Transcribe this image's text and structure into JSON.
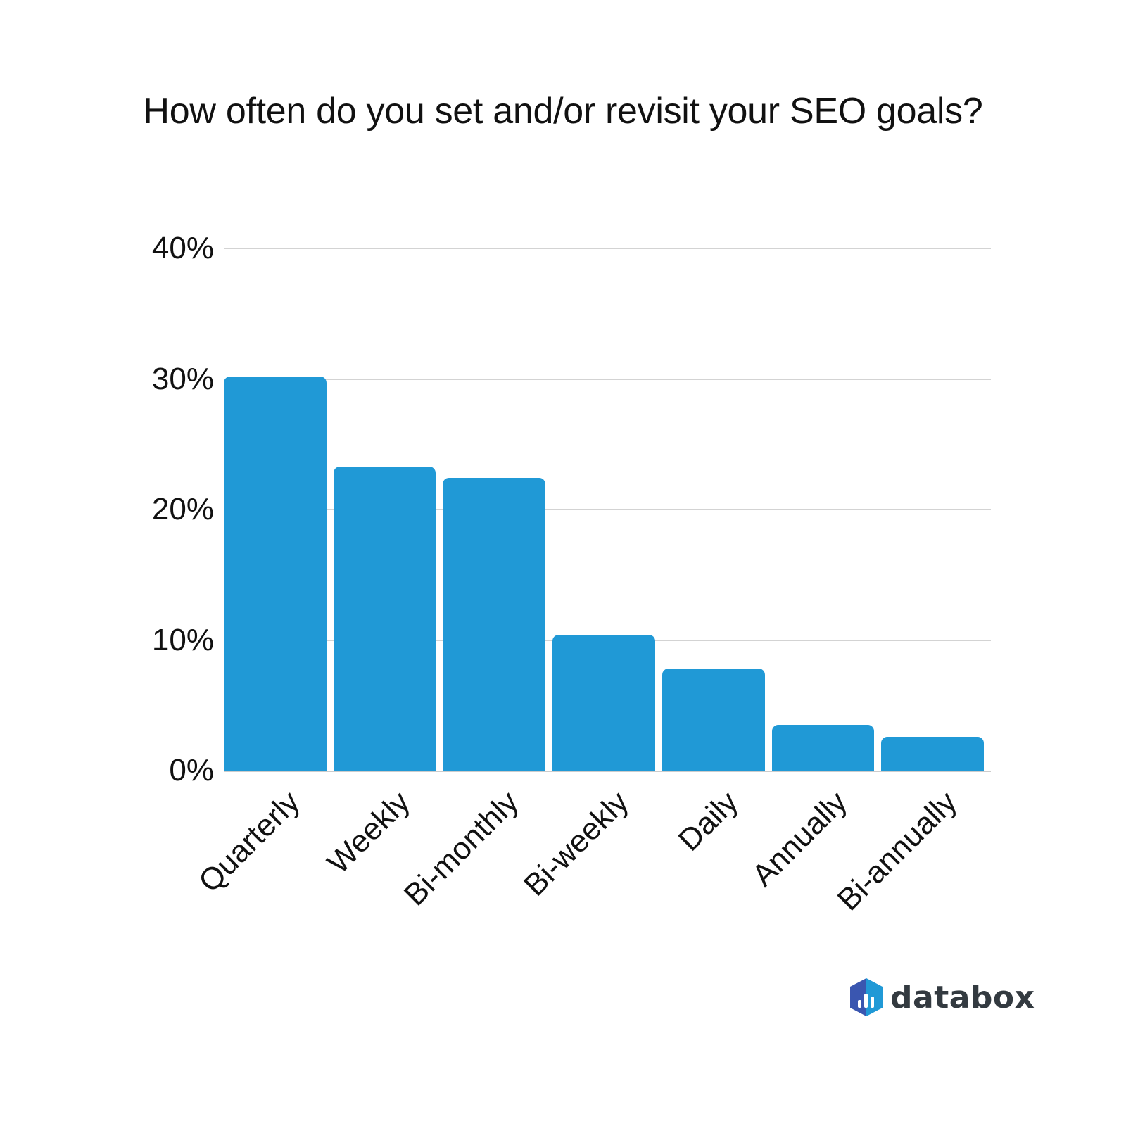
{
  "title": "How often do you set and/or revisit your SEO goals?",
  "brand": {
    "name": "databox",
    "logo_icon": "databox-hexagon-bar-icon",
    "colors": [
      "#3a56b0",
      "#2099d6"
    ]
  },
  "colors": {
    "bar": "#2099d6",
    "grid": "#d3d3d3",
    "text": "#111111"
  },
  "y_ticks": [
    "40%",
    "30%",
    "20%",
    "10%",
    "0%"
  ],
  "chart_data": {
    "type": "bar",
    "title": "How often do you set and/or revisit your SEO goals?",
    "xlabel": "",
    "ylabel": "",
    "categories": [
      "Quarterly",
      "Weekly",
      "Bi-monthly",
      "Bi-weekly",
      "Daily",
      "Annually",
      "Bi-annually"
    ],
    "values": [
      30.2,
      23.3,
      22.4,
      10.4,
      7.8,
      3.5,
      2.6
    ],
    "unit": "%",
    "ylim": [
      0,
      40
    ],
    "y_ticks": [
      0,
      10,
      20,
      30,
      40
    ],
    "grid": true,
    "legend": null
  }
}
